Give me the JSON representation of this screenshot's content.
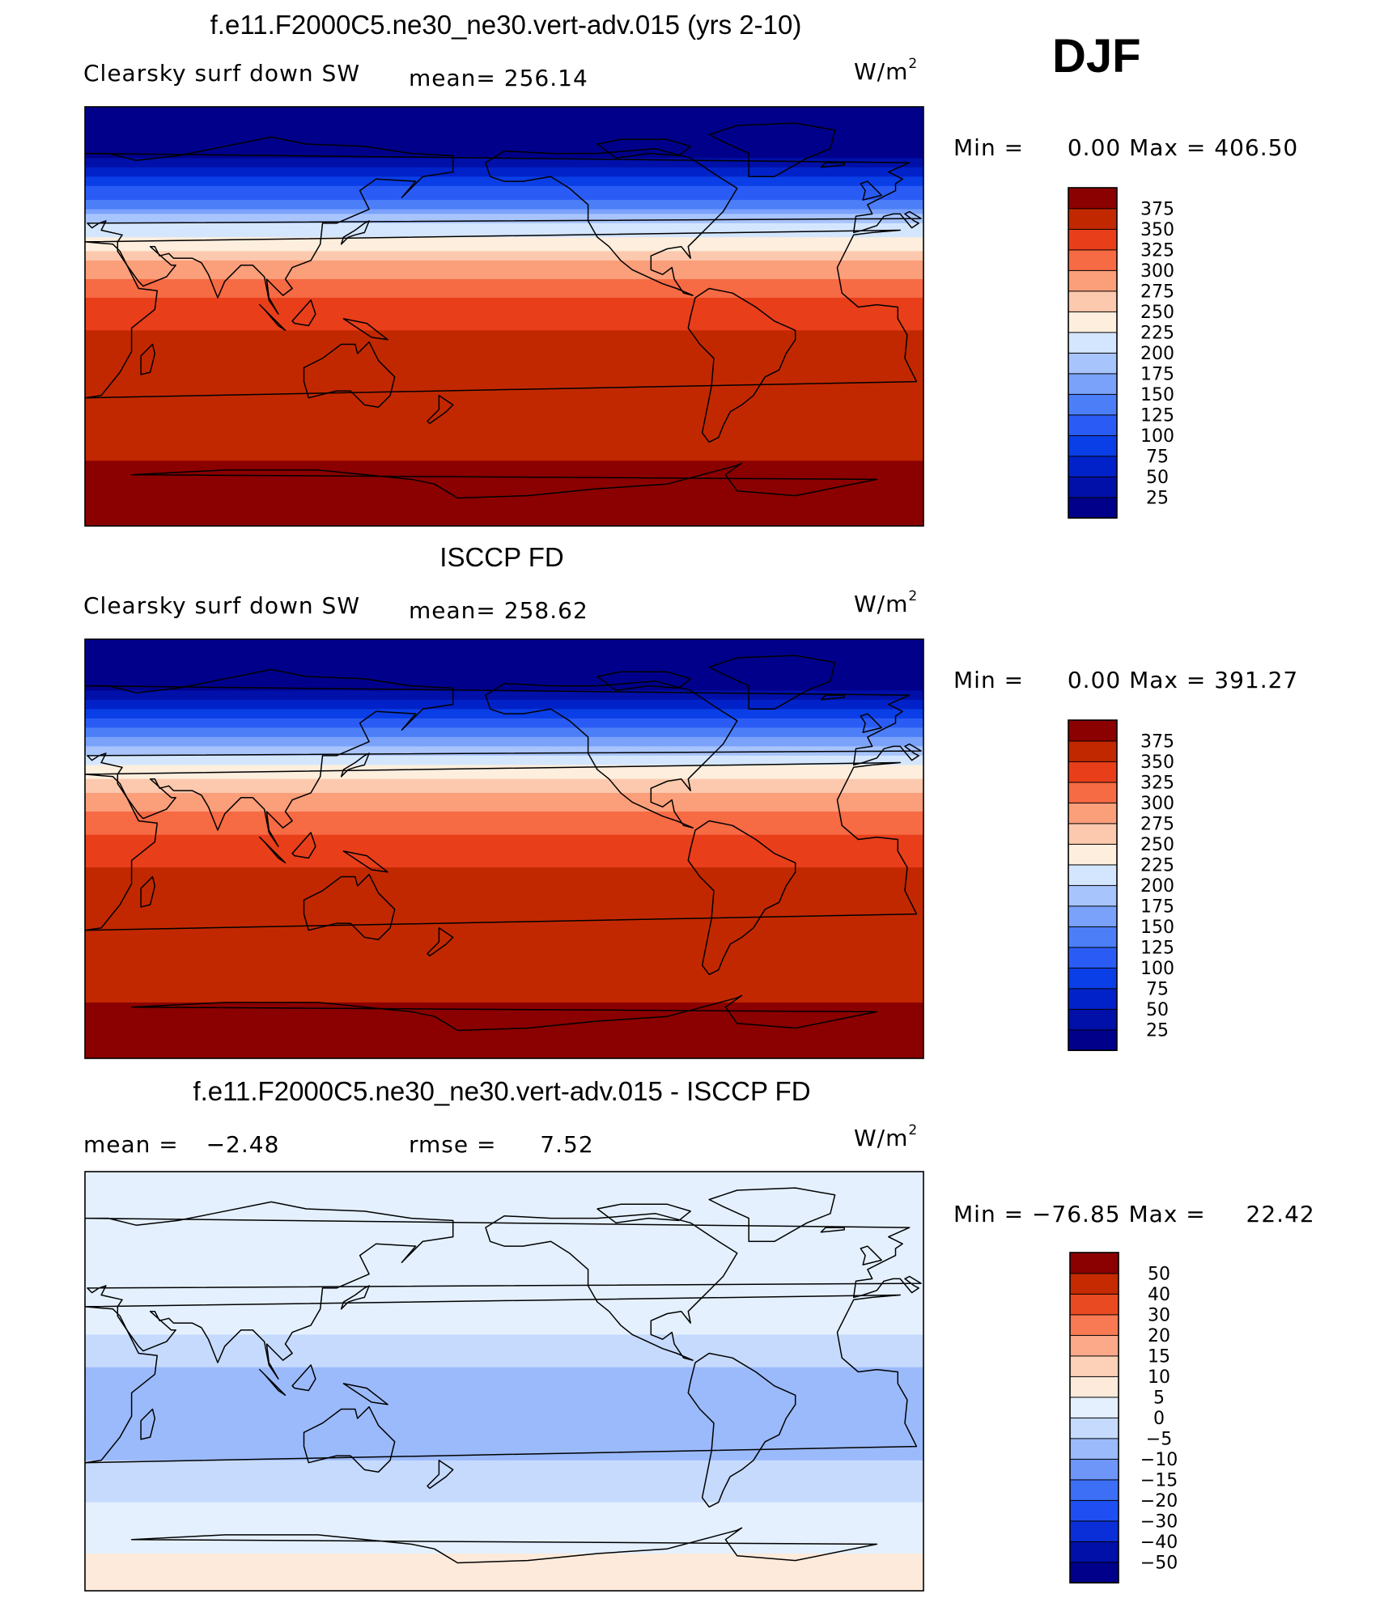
{
  "header": {
    "season": "DJF"
  },
  "chart_data": [
    {
      "type": "heatmap",
      "title": "f.e11.F2000C5.ne30_ne30.vert-adv.015 (yrs 2-10)",
      "variable": "Clearsky surf down SW",
      "stat_label": "mean=",
      "stat_value": "256.14",
      "units_base": "W/m",
      "units_exp": "2",
      "min_label": "Min =",
      "min_value": "0.00",
      "max_label": "Max =",
      "max_value": "406.50",
      "colorbar": {
        "levels": [
          "25",
          "50",
          "75",
          "100",
          "125",
          "150",
          "175",
          "200",
          "225",
          "250",
          "275",
          "300",
          "325",
          "350",
          "375"
        ],
        "colors": [
          "#00008b",
          "#0010a8",
          "#0022c8",
          "#0a3ee6",
          "#2a5cf5",
          "#4c7ef8",
          "#7aa2fb",
          "#a8c4fd",
          "#d4e6fe",
          "#fdeedd",
          "#fcc9ae",
          "#fb9e7a",
          "#f66a44",
          "#e83e1a",
          "#c22800",
          "#8b0000"
        ]
      },
      "zonal_profile": [
        {
          "lat": 90,
          "value": 0
        },
        {
          "lat": 80,
          "value": 2
        },
        {
          "lat": 70,
          "value": 15
        },
        {
          "lat": 60,
          "value": 70
        },
        {
          "lat": 50,
          "value": 130
        },
        {
          "lat": 40,
          "value": 195
        },
        {
          "lat": 30,
          "value": 245
        },
        {
          "lat": 20,
          "value": 290
        },
        {
          "lat": 10,
          "value": 320
        },
        {
          "lat": 0,
          "value": 340
        },
        {
          "lat": -10,
          "value": 355
        },
        {
          "lat": -20,
          "value": 362
        },
        {
          "lat": -30,
          "value": 365
        },
        {
          "lat": -40,
          "value": 362
        },
        {
          "lat": -50,
          "value": 365
        },
        {
          "lat": -60,
          "value": 372
        },
        {
          "lat": -70,
          "value": 385
        },
        {
          "lat": -80,
          "value": 400
        },
        {
          "lat": -90,
          "value": 405
        }
      ]
    },
    {
      "type": "heatmap",
      "title": "ISCCP FD",
      "variable": "Clearsky surf down SW",
      "stat_label": "mean=",
      "stat_value": "258.62",
      "units_base": "W/m",
      "units_exp": "2",
      "min_label": "Min =",
      "min_value": "0.00",
      "max_label": "Max =",
      "max_value": "391.27",
      "colorbar": {
        "levels": [
          "25",
          "50",
          "75",
          "100",
          "125",
          "150",
          "175",
          "200",
          "225",
          "250",
          "275",
          "300",
          "325",
          "350",
          "375"
        ],
        "colors": [
          "#00008b",
          "#0010a8",
          "#0022c8",
          "#0a3ee6",
          "#2a5cf5",
          "#4c7ef8",
          "#7aa2fb",
          "#a8c4fd",
          "#d4e6fe",
          "#fdeedd",
          "#fcc9ae",
          "#fb9e7a",
          "#f66a44",
          "#e83e1a",
          "#c22800",
          "#8b0000"
        ]
      },
      "zonal_profile": [
        {
          "lat": 90,
          "value": 0
        },
        {
          "lat": 80,
          "value": 2
        },
        {
          "lat": 70,
          "value": 18
        },
        {
          "lat": 60,
          "value": 75
        },
        {
          "lat": 50,
          "value": 135
        },
        {
          "lat": 40,
          "value": 200
        },
        {
          "lat": 30,
          "value": 250
        },
        {
          "lat": 20,
          "value": 290
        },
        {
          "lat": 10,
          "value": 318
        },
        {
          "lat": 0,
          "value": 338
        },
        {
          "lat": -10,
          "value": 352
        },
        {
          "lat": -20,
          "value": 360
        },
        {
          "lat": -30,
          "value": 363
        },
        {
          "lat": -40,
          "value": 360
        },
        {
          "lat": -50,
          "value": 360
        },
        {
          "lat": -60,
          "value": 368
        },
        {
          "lat": -70,
          "value": 380
        },
        {
          "lat": -80,
          "value": 388
        },
        {
          "lat": -90,
          "value": 390
        }
      ]
    },
    {
      "type": "heatmap",
      "title": "f.e11.F2000C5.ne30_ne30.vert-adv.015 - ISCCP FD",
      "stat_label": "mean =",
      "stat_value": "−2.48",
      "stat2_label": "rmse =",
      "stat2_value": "7.52",
      "units_base": "W/m",
      "units_exp": "2",
      "min_label": "Min =",
      "min_value": "−76.85",
      "max_label": "Max =",
      "max_value": "22.42",
      "colorbar": {
        "levels": [
          "−50",
          "−40",
          "−30",
          "−20",
          "−15",
          "−10",
          "−5",
          "0",
          "5",
          "10",
          "15",
          "20",
          "30",
          "40",
          "50"
        ],
        "colors": [
          "#00008b",
          "#0010a8",
          "#0a2fd8",
          "#1f4ff2",
          "#3d6ef6",
          "#6e96f9",
          "#9bbafb",
          "#c6dafd",
          "#e4f0fe",
          "#fdeadb",
          "#fdd0b8",
          "#fca98a",
          "#f87a55",
          "#ea4a22",
          "#c52a00",
          "#8b0000"
        ]
      },
      "zonal_profile": [
        {
          "lat": 90,
          "value": 0
        },
        {
          "lat": 80,
          "value": 1
        },
        {
          "lat": 70,
          "value": 2
        },
        {
          "lat": 60,
          "value": 2
        },
        {
          "lat": 50,
          "value": 3
        },
        {
          "lat": 40,
          "value": 3
        },
        {
          "lat": 30,
          "value": 2
        },
        {
          "lat": 20,
          "value": 0
        },
        {
          "lat": 10,
          "value": -4
        },
        {
          "lat": 0,
          "value": -7
        },
        {
          "lat": -10,
          "value": -8
        },
        {
          "lat": -20,
          "value": -8
        },
        {
          "lat": -30,
          "value": -6
        },
        {
          "lat": -40,
          "value": -4
        },
        {
          "lat": -50,
          "value": -1
        },
        {
          "lat": -60,
          "value": 3
        },
        {
          "lat": -70,
          "value": 4
        },
        {
          "lat": -80,
          "value": 6
        },
        {
          "lat": -90,
          "value": 7
        }
      ]
    }
  ]
}
